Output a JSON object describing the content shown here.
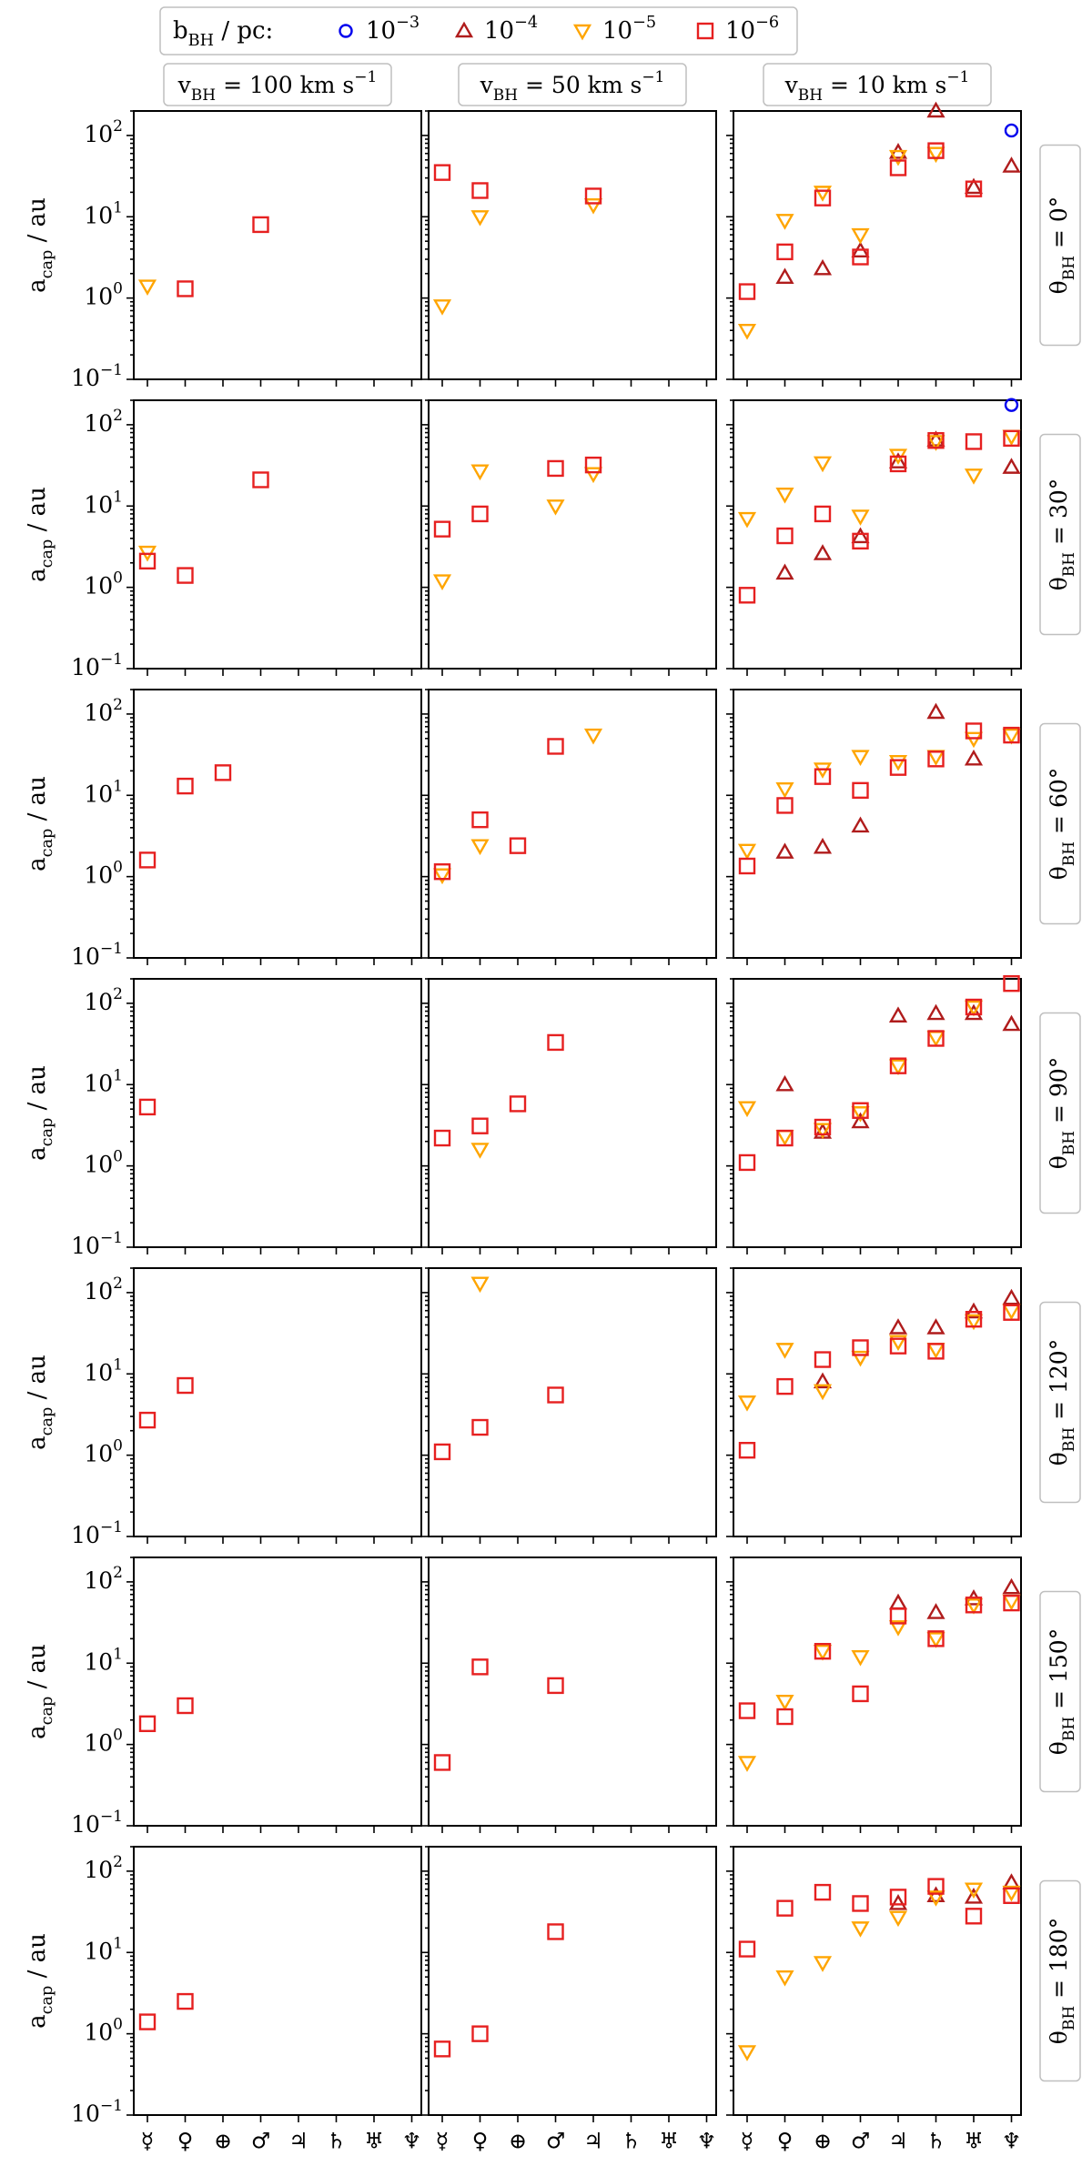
{
  "figure": {
    "legend": {
      "title": "b_BH / pc:",
      "entries": [
        {
          "label": "10^-3",
          "marker": "circle",
          "color": "#0000ee"
        },
        {
          "label": "10^-4",
          "marker": "triangle-up",
          "color": "#b01c1c"
        },
        {
          "label": "10^-5",
          "marker": "triangle-down",
          "color": "#ffa500"
        },
        {
          "label": "10^-6",
          "marker": "square",
          "color": "#e62020"
        }
      ]
    },
    "column_titles": [
      "v_BH = 100 km s^-1",
      "v_BH = 50 km s^-1",
      "v_BH = 10 km s^-1"
    ],
    "row_titles": [
      "θ_BH = 0°",
      "θ_BH = 30°",
      "θ_BH = 60°",
      "θ_BH = 90°",
      "θ_BH = 120°",
      "θ_BH = 150°",
      "θ_BH = 180°"
    ],
    "ylabel": "a_cap / au",
    "yticks": [
      "10^2",
      "10^1",
      "10^0",
      "10^-1"
    ],
    "xticks": [
      "☿",
      "♀",
      "⊕",
      "♂",
      "♃",
      "♄",
      "♅",
      "♆"
    ]
  },
  "chart_data": {
    "type": "scatter",
    "yscale": "log",
    "ylim": [
      0.1,
      200
    ],
    "x_categories": [
      "Mercury",
      "Venus",
      "Earth",
      "Mars",
      "Jupiter",
      "Saturn",
      "Uranus",
      "Neptune"
    ],
    "panels": [
      {
        "row": 0,
        "col": 0,
        "points": {
          "b1e-3": [],
          "b1e-4": [],
          "b1e-5": [
            [
              0,
              1.4
            ]
          ],
          "b1e-6": [
            [
              1,
              1.3
            ],
            [
              3,
              8.0
            ]
          ]
        }
      },
      {
        "row": 0,
        "col": 1,
        "points": {
          "b1e-3": [],
          "b1e-4": [],
          "b1e-5": [
            [
              0,
              0.8
            ],
            [
              1,
              10
            ],
            [
              4,
              14
            ]
          ],
          "b1e-6": [
            [
              0,
              35
            ],
            [
              1,
              21
            ],
            [
              4,
              18
            ]
          ]
        }
      },
      {
        "row": 0,
        "col": 2,
        "points": {
          "b1e-3": [
            [
              7,
              115
            ]
          ],
          "b1e-4": [
            [
              1,
              1.8
            ],
            [
              2,
              2.3
            ],
            [
              3,
              3.8
            ],
            [
              4,
              62
            ],
            [
              5,
              200
            ],
            [
              6,
              23
            ],
            [
              7,
              42
            ]
          ],
          "b1e-5": [
            [
              0,
              0.4
            ],
            [
              1,
              9
            ],
            [
              2,
              20
            ],
            [
              3,
              6
            ],
            [
              4,
              55
            ],
            [
              5,
              60
            ]
          ],
          "b1e-6": [
            [
              0,
              1.2
            ],
            [
              1,
              3.7
            ],
            [
              2,
              17
            ],
            [
              3,
              3.2
            ],
            [
              4,
              40
            ],
            [
              5,
              65
            ],
            [
              6,
              22
            ]
          ]
        }
      },
      {
        "row": 1,
        "col": 0,
        "points": {
          "b1e-3": [],
          "b1e-4": [],
          "b1e-5": [
            [
              0,
              2.7
            ]
          ],
          "b1e-6": [
            [
              0,
              2.1
            ],
            [
              1,
              1.4
            ],
            [
              3,
              21
            ]
          ]
        }
      },
      {
        "row": 1,
        "col": 1,
        "points": {
          "b1e-3": [],
          "b1e-4": [],
          "b1e-5": [
            [
              0,
              1.2
            ],
            [
              1,
              27
            ],
            [
              3,
              10
            ],
            [
              4,
              25
            ]
          ],
          "b1e-6": [
            [
              0,
              5.2
            ],
            [
              1,
              8
            ],
            [
              3,
              29
            ],
            [
              4,
              32
            ]
          ]
        }
      },
      {
        "row": 1,
        "col": 2,
        "points": {
          "b1e-3": [
            [
              7,
              175
            ]
          ],
          "b1e-4": [
            [
              1,
              1.5
            ],
            [
              2,
              2.6
            ],
            [
              3,
              4.2
            ],
            [
              4,
              35
            ],
            [
              5,
              65
            ],
            [
              7,
              30
            ]
          ],
          "b1e-5": [
            [
              0,
              7
            ],
            [
              1,
              14
            ],
            [
              2,
              34
            ],
            [
              3,
              7.5
            ],
            [
              4,
              42
            ],
            [
              5,
              62
            ],
            [
              6,
              24
            ],
            [
              7,
              72
            ]
          ],
          "b1e-6": [
            [
              0,
              0.8
            ],
            [
              1,
              4.3
            ],
            [
              2,
              8
            ],
            [
              3,
              3.7
            ],
            [
              4,
              33
            ],
            [
              5,
              64
            ],
            [
              6,
              62
            ],
            [
              7,
              68
            ]
          ]
        }
      },
      {
        "row": 2,
        "col": 0,
        "points": {
          "b1e-3": [],
          "b1e-4": [],
          "b1e-5": [],
          "b1e-6": [
            [
              0,
              1.6
            ],
            [
              1,
              13
            ],
            [
              2,
              19
            ]
          ]
        }
      },
      {
        "row": 2,
        "col": 1,
        "points": {
          "b1e-3": [],
          "b1e-4": [],
          "b1e-5": [
            [
              0,
              1.05
            ],
            [
              1,
              2.4
            ],
            [
              4,
              55
            ]
          ],
          "b1e-6": [
            [
              0,
              1.15
            ],
            [
              1,
              5
            ],
            [
              2,
              2.4
            ],
            [
              3,
              40
            ]
          ]
        }
      },
      {
        "row": 2,
        "col": 2,
        "points": {
          "b1e-3": [],
          "b1e-4": [
            [
              1,
              2
            ],
            [
              2,
              2.3
            ],
            [
              3,
              4.2
            ],
            [
              5,
              105
            ],
            [
              6,
              28
            ]
          ],
          "b1e-5": [
            [
              0,
              2.1
            ],
            [
              1,
              12
            ],
            [
              2,
              21
            ],
            [
              3,
              30
            ],
            [
              4,
              26
            ],
            [
              5,
              30
            ],
            [
              6,
              50
            ],
            [
              7,
              55
            ]
          ],
          "b1e-6": [
            [
              0,
              1.35
            ],
            [
              1,
              7.5
            ],
            [
              2,
              17
            ],
            [
              3,
              11.5
            ],
            [
              4,
              22
            ],
            [
              5,
              28
            ],
            [
              6,
              62
            ],
            [
              7,
              55
            ]
          ]
        }
      },
      {
        "row": 3,
        "col": 0,
        "points": {
          "b1e-3": [],
          "b1e-4": [],
          "b1e-5": [],
          "b1e-6": [
            [
              0,
              5.3
            ]
          ]
        }
      },
      {
        "row": 3,
        "col": 1,
        "points": {
          "b1e-3": [],
          "b1e-4": [],
          "b1e-5": [
            [
              1,
              1.6
            ]
          ],
          "b1e-6": [
            [
              0,
              2.2
            ],
            [
              1,
              3.1
            ],
            [
              2,
              5.8
            ],
            [
              3,
              33
            ]
          ]
        }
      },
      {
        "row": 3,
        "col": 2,
        "points": {
          "b1e-3": [],
          "b1e-4": [
            [
              1,
              10
            ],
            [
              2,
              2.6
            ],
            [
              3,
              3.5
            ],
            [
              4,
              70
            ],
            [
              5,
              75
            ],
            [
              6,
              75
            ],
            [
              7,
              55
            ]
          ],
          "b1e-5": [
            [
              0,
              5.2
            ],
            [
              1,
              2.3
            ],
            [
              2,
              2.8
            ],
            [
              3,
              4.5
            ],
            [
              4,
              17
            ],
            [
              5,
              38
            ],
            [
              6,
              90
            ]
          ],
          "b1e-6": [
            [
              0,
              1.1
            ],
            [
              1,
              2.2
            ],
            [
              2,
              3
            ],
            [
              3,
              4.8
            ],
            [
              4,
              17
            ],
            [
              5,
              37
            ],
            [
              6,
              90
            ],
            [
              7,
              175
            ]
          ]
        }
      },
      {
        "row": 4,
        "col": 0,
        "points": {
          "b1e-3": [],
          "b1e-4": [],
          "b1e-5": [],
          "b1e-6": [
            [
              0,
              2.7
            ],
            [
              1,
              7.2
            ]
          ]
        }
      },
      {
        "row": 4,
        "col": 1,
        "points": {
          "b1e-3": [],
          "b1e-4": [],
          "b1e-5": [
            [
              1,
              130
            ]
          ],
          "b1e-6": [
            [
              0,
              1.1
            ],
            [
              1,
              2.2
            ],
            [
              3,
              5.5
            ]
          ]
        }
      },
      {
        "row": 4,
        "col": 2,
        "points": {
          "b1e-3": [],
          "b1e-4": [
            [
              2,
              8
            ],
            [
              4,
              37
            ],
            [
              5,
              37
            ],
            [
              6,
              58
            ],
            [
              7,
              85
            ]
          ],
          "b1e-5": [
            [
              0,
              4.5
            ],
            [
              1,
              20
            ],
            [
              2,
              6.2
            ],
            [
              3,
              16
            ],
            [
              4,
              25
            ],
            [
              5,
              20
            ],
            [
              6,
              45
            ],
            [
              7,
              60
            ]
          ],
          "b1e-6": [
            [
              0,
              1.15
            ],
            [
              1,
              7
            ],
            [
              2,
              15
            ],
            [
              3,
              21
            ],
            [
              4,
              22
            ],
            [
              5,
              19
            ],
            [
              6,
              47
            ],
            [
              7,
              57
            ]
          ]
        }
      },
      {
        "row": 5,
        "col": 0,
        "points": {
          "b1e-3": [],
          "b1e-4": [],
          "b1e-5": [],
          "b1e-6": [
            [
              0,
              1.8
            ],
            [
              1,
              3
            ]
          ]
        }
      },
      {
        "row": 5,
        "col": 1,
        "points": {
          "b1e-3": [],
          "b1e-4": [],
          "b1e-5": [],
          "b1e-6": [
            [
              0,
              0.6
            ],
            [
              1,
              9
            ],
            [
              3,
              5.3
            ]
          ]
        }
      },
      {
        "row": 5,
        "col": 2,
        "points": {
          "b1e-3": [],
          "b1e-4": [
            [
              4,
              55
            ],
            [
              5,
              42
            ],
            [
              6,
              62
            ],
            [
              7,
              85
            ]
          ],
          "b1e-5": [
            [
              0,
              0.6
            ],
            [
              1,
              3.4
            ],
            [
              2,
              14
            ],
            [
              3,
              12
            ],
            [
              4,
              28
            ],
            [
              5,
              20
            ],
            [
              6,
              52
            ],
            [
              7,
              58
            ]
          ],
          "b1e-6": [
            [
              0,
              2.6
            ],
            [
              1,
              2.2
            ],
            [
              2,
              14
            ],
            [
              3,
              4.2
            ],
            [
              4,
              38
            ],
            [
              5,
              20
            ],
            [
              6,
              52
            ],
            [
              7,
              55
            ]
          ]
        }
      },
      {
        "row": 6,
        "col": 0,
        "points": {
          "b1e-3": [],
          "b1e-4": [],
          "b1e-5": [],
          "b1e-6": [
            [
              0,
              1.4
            ],
            [
              1,
              2.5
            ]
          ]
        }
      },
      {
        "row": 6,
        "col": 1,
        "points": {
          "b1e-3": [],
          "b1e-4": [],
          "b1e-5": [],
          "b1e-6": [
            [
              0,
              0.65
            ],
            [
              1,
              1
            ],
            [
              3,
              18
            ]
          ]
        }
      },
      {
        "row": 6,
        "col": 2,
        "points": {
          "b1e-3": [],
          "b1e-4": [
            [
              4,
              40
            ],
            [
              5,
              50
            ],
            [
              6,
              48
            ],
            [
              7,
              72
            ]
          ],
          "b1e-5": [
            [
              0,
              0.6
            ],
            [
              1,
              5
            ],
            [
              2,
              7.5
            ],
            [
              3,
              20
            ],
            [
              4,
              27
            ],
            [
              5,
              48
            ],
            [
              6,
              60
            ],
            [
              7,
              55
            ]
          ],
          "b1e-6": [
            [
              0,
              11
            ],
            [
              1,
              35
            ],
            [
              2,
              55
            ],
            [
              3,
              40
            ],
            [
              4,
              48
            ],
            [
              5,
              65
            ],
            [
              6,
              28
            ],
            [
              7,
              50
            ]
          ]
        }
      }
    ]
  }
}
